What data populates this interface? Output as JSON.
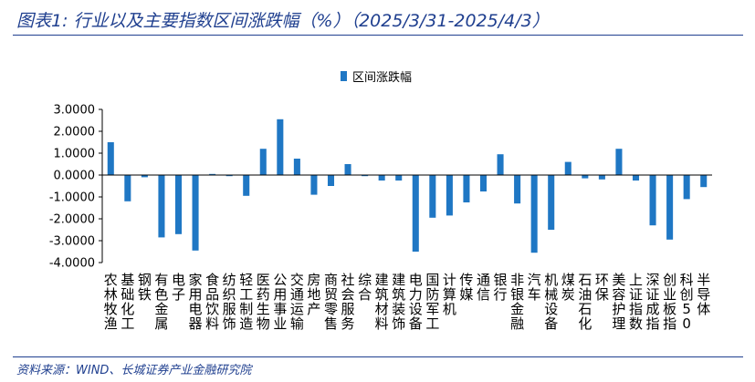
{
  "figure": {
    "title": "图表1:  行业以及主要指数区间涨跌幅（%）（2025/3/31-2025/4/3）",
    "source": "资料来源：WIND、长城证券产业金融研究院"
  },
  "chart_data": {
    "type": "bar",
    "legend": "区间涨跌幅",
    "legend_position": "top-center",
    "ylim": [
      -4,
      3
    ],
    "yticks": [
      "3.0000",
      "2.0000",
      "1.0000",
      "0.0000",
      "-1.0000",
      "-2.0000",
      "-3.0000",
      "-4.0000"
    ],
    "grid": false,
    "color": "#1f77c4",
    "categories": [
      "农林牧渔",
      "基础化工",
      "钢铁",
      "有色金属",
      "电子",
      "家用电器",
      "食品饮料",
      "纺织服饰",
      "轻工制造",
      "医药生物",
      "公用事业",
      "交通运输",
      "房地产",
      "商贸零售",
      "社会服务",
      "综合",
      "建筑材料",
      "建筑装饰",
      "电力设备",
      "国防军工",
      "计算机",
      "传媒",
      "通信",
      "银行",
      "非银金融",
      "汽车",
      "机械设备",
      "煤炭",
      "石油石化",
      "环保",
      "美容护理",
      "上证指数",
      "深证成指",
      "创业板指",
      "科创50",
      "半导体"
    ],
    "values": [
      1.5,
      -1.2,
      -0.1,
      -2.85,
      -2.7,
      -3.45,
      0.05,
      -0.05,
      -0.95,
      1.2,
      2.55,
      0.75,
      -0.9,
      -0.5,
      0.5,
      -0.05,
      -0.25,
      -0.25,
      -3.5,
      -1.95,
      -1.85,
      -1.25,
      -0.75,
      0.95,
      -1.3,
      -3.55,
      -2.5,
      0.6,
      -0.15,
      -0.2,
      1.2,
      -0.25,
      -2.3,
      -2.95,
      -1.1,
      -0.55
    ]
  }
}
